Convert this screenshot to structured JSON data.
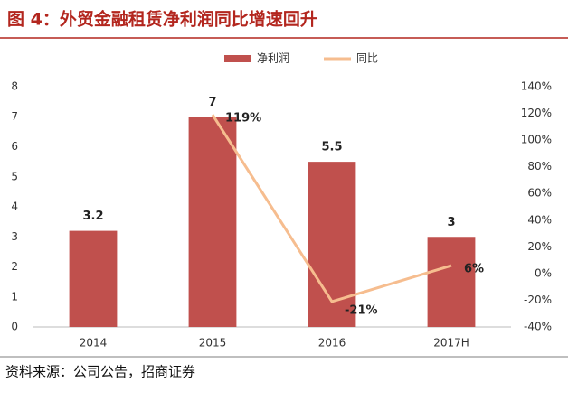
{
  "chart_data": {
    "type": "combo",
    "title": "图 4：外贸金融租赁净利润同比增速回升",
    "source": "资料来源：公司公告，招商证券",
    "categories": [
      "2014",
      "2015",
      "2016",
      "2017H"
    ],
    "series": [
      {
        "name": "净利润",
        "type": "bar",
        "color": "#c0504d",
        "values": [
          3.2,
          7,
          5.5,
          3
        ]
      },
      {
        "name": "同比",
        "type": "line",
        "axis": "y2",
        "color": "#f6bd8f",
        "values": [
          null,
          119,
          -21,
          6
        ],
        "value_labels": [
          null,
          "119%",
          "-21%",
          "6%"
        ]
      }
    ],
    "ylim": [
      0,
      8
    ],
    "yticks": [
      0,
      1,
      2,
      3,
      4,
      5,
      6,
      7,
      8
    ],
    "y2lim": [
      -40,
      140
    ],
    "y2ticks": [
      {
        "value": -40,
        "label": "-40%"
      },
      {
        "value": -20,
        "label": "-20%"
      },
      {
        "value": 0,
        "label": "0%"
      },
      {
        "value": 20,
        "label": "20%"
      },
      {
        "value": 40,
        "label": "40%"
      },
      {
        "value": 60,
        "label": "60%"
      },
      {
        "value": 80,
        "label": "80%"
      },
      {
        "value": 100,
        "label": "100%"
      },
      {
        "value": 120,
        "label": "120%"
      },
      {
        "value": 140,
        "label": "140%"
      }
    ],
    "legend": "top",
    "grid": false
  }
}
